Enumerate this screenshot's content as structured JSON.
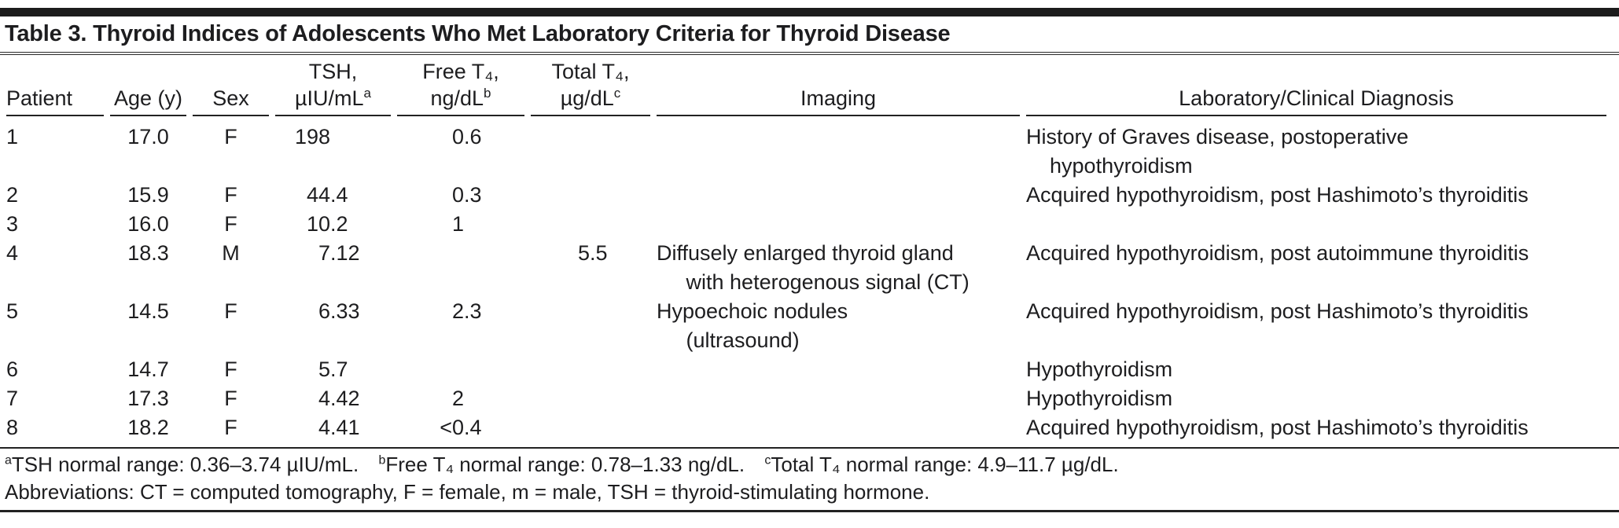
{
  "table": {
    "title": "Table 3. Thyroid Indices of Adolescents Who Met Laboratory Criteria for Thyroid Disease",
    "columns": [
      {
        "line1": "",
        "line2": "Patient",
        "sup": ""
      },
      {
        "line1": "",
        "line2": "Age (y)",
        "sup": ""
      },
      {
        "line1": "",
        "line2": "Sex",
        "sup": ""
      },
      {
        "line1": "TSH,",
        "line2": "µIU/mL",
        "sup": "a"
      },
      {
        "line1": "Free T₄,",
        "line2": "ng/dL",
        "sup": "b"
      },
      {
        "line1": "Total T₄,",
        "line2": "µg/dL",
        "sup": "c"
      },
      {
        "line1": "",
        "line2": "Imaging",
        "sup": ""
      },
      {
        "line1": "",
        "line2": "Laboratory/Clinical Diagnosis",
        "sup": ""
      }
    ],
    "rows": [
      {
        "patient": "1",
        "age": "17.0",
        "sex": "F",
        "tsh": "198",
        "free_t4": "0.6",
        "total_t4": "",
        "imaging": "",
        "diagnosis": "History of Graves disease, postoperative\n    hypothyroidism"
      },
      {
        "patient": "2",
        "age": "15.9",
        "sex": "F",
        "tsh": "44.4",
        "free_t4": "0.3",
        "total_t4": "",
        "imaging": "",
        "diagnosis": "Acquired hypothyroidism, post Hashimoto’s thyroiditis"
      },
      {
        "patient": "3",
        "age": "16.0",
        "sex": "F",
        "tsh": "10.2",
        "free_t4": "1",
        "total_t4": "",
        "imaging": "",
        "diagnosis": ""
      },
      {
        "patient": "4",
        "age": "18.3",
        "sex": "M",
        "tsh": "7.12",
        "free_t4": "",
        "total_t4": "5.5",
        "imaging": "Diffusely enlarged thyroid gland\n     with heterogenous signal (CT)",
        "diagnosis": "Acquired hypothyroidism, post autoimmune thyroiditis"
      },
      {
        "patient": "5",
        "age": "14.5",
        "sex": "F",
        "tsh": "6.33",
        "free_t4": "2.3",
        "total_t4": "",
        "imaging": "Hypoechoic nodules\n     (ultrasound)",
        "diagnosis": "Acquired hypothyroidism, post Hashimoto’s thyroiditis"
      },
      {
        "patient": "6",
        "age": "14.7",
        "sex": "F",
        "tsh": "5.7",
        "free_t4": "",
        "total_t4": "",
        "imaging": "",
        "diagnosis": "Hypothyroidism"
      },
      {
        "patient": "7",
        "age": "17.3",
        "sex": "F",
        "tsh": "4.42",
        "free_t4": "2",
        "total_t4": "",
        "imaging": "",
        "diagnosis": "Hypothyroidism"
      },
      {
        "patient": "8",
        "age": "18.2",
        "sex": "F",
        "tsh": "4.41",
        "free_t4": "<0.4",
        "total_t4": "",
        "imaging": "",
        "diagnosis": "Acquired hypothyroidism, post Hashimoto’s thyroiditis"
      }
    ],
    "footnotes": [
      {
        "sup": "a",
        "text": "TSH normal range: 0.36–3.74 µIU/mL."
      },
      {
        "sup": "b",
        "text": "Free T₄ normal range: 0.78–1.33 ng/dL."
      },
      {
        "sup": "c",
        "text": "Total T₄ normal range: 4.9–11.7 µg/dL."
      }
    ],
    "abbreviations": "Abbreviations: CT = computed tomography, F = female, m = male, TSH = thyroid-stimulating hormone."
  },
  "colors": {
    "text": "#1d1d1f",
    "rule": "#222222",
    "top_bar": "#1c1c1c",
    "background": "#ffffff"
  }
}
